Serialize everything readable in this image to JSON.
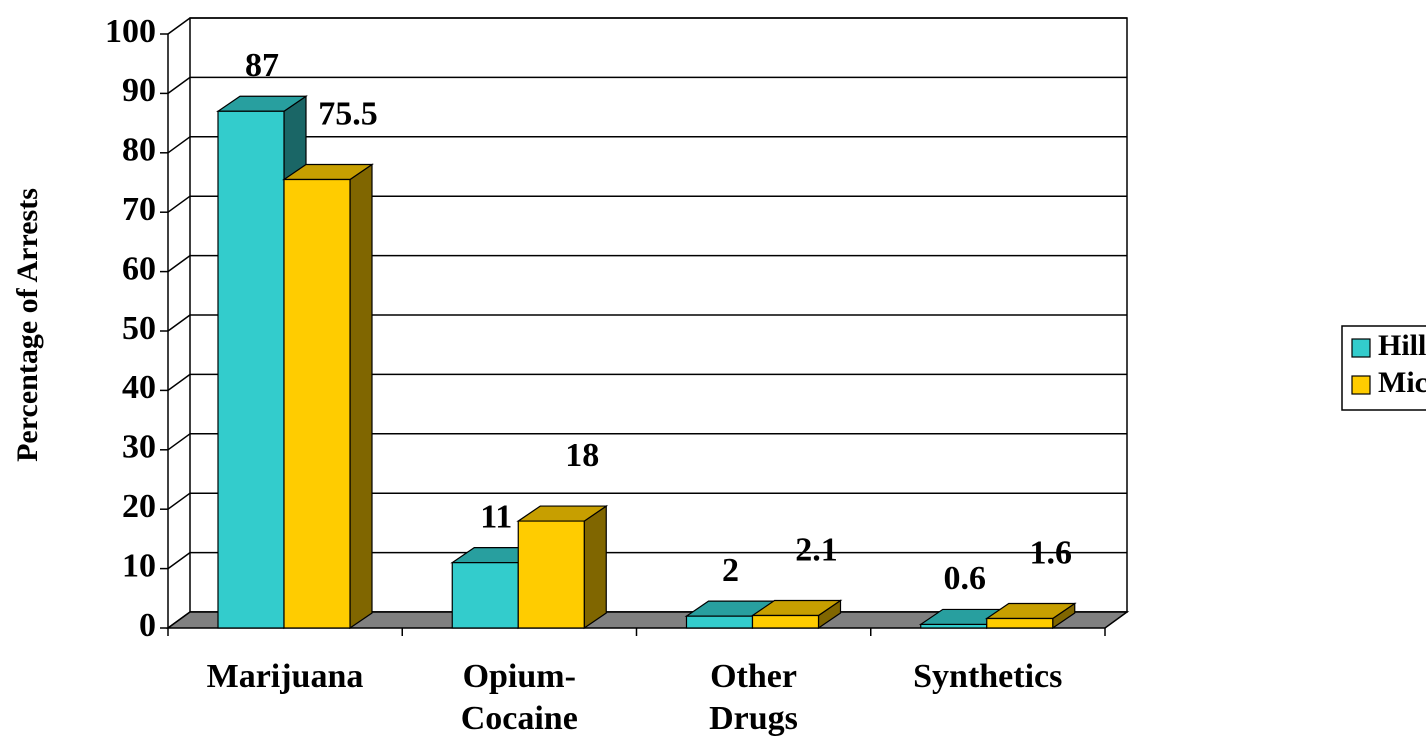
{
  "chart_data": {
    "type": "bar3d",
    "y_axis_label": "Percentage of Arrests",
    "categories": [
      "Marijuana",
      "Opium-\nCocaine",
      "Other\nDrugs",
      "Synthetics"
    ],
    "series": [
      {
        "name": "Hillsdale",
        "color": "#33cccc",
        "values": [
          87,
          11,
          2,
          0.6
        ]
      },
      {
        "name": "Michigan",
        "color": "#ffcc00",
        "values": [
          75.5,
          18,
          2.1,
          1.6
        ]
      }
    ],
    "ylim": [
      0,
      100
    ],
    "yticks": [
      0,
      10,
      20,
      30,
      40,
      50,
      60,
      70,
      80,
      90,
      100
    ],
    "grid": true,
    "legend": "right"
  }
}
